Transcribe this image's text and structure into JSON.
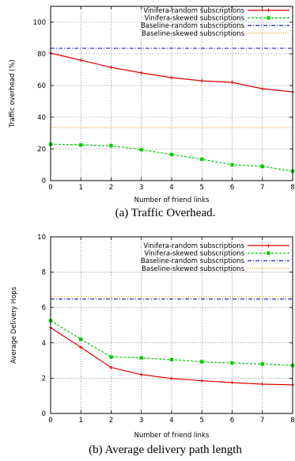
{
  "chart_data": [
    {
      "type": "line",
      "caption": "(a) Traffic Overhead.",
      "xlabel": "Number of friend links",
      "ylabel": "Traffic overhead (%)",
      "xlim": [
        0,
        8
      ],
      "ylim": [
        0,
        110
      ],
      "xticks": [
        0,
        1,
        2,
        3,
        4,
        5,
        6,
        7,
        8
      ],
      "yticks": [
        0,
        20,
        40,
        60,
        80,
        100
      ],
      "grid": true,
      "legend": "top-right",
      "series": [
        {
          "name": "Vinifera-random subscriptions",
          "style": "line-points",
          "color": "#dd0000",
          "x": [
            0,
            1,
            2,
            3,
            4,
            5,
            6,
            7,
            8
          ],
          "values": [
            80.5,
            76,
            71.5,
            68,
            65,
            63,
            62,
            58,
            56
          ]
        },
        {
          "name": "Vinifera-skewed subscriptions",
          "style": "dashed-squares",
          "color": "#00cc00",
          "x": [
            0,
            1,
            2,
            3,
            4,
            5,
            6,
            7,
            8
          ],
          "values": [
            23,
            22.5,
            22,
            19.5,
            16.5,
            13.5,
            10,
            9,
            6
          ]
        },
        {
          "name": "Baseline-random subscriptions",
          "style": "dash-dot",
          "color": "#0000cc",
          "x": [
            0,
            8
          ],
          "values": [
            83.5,
            83.5
          ]
        },
        {
          "name": "Baseline-skewed subscriptions",
          "style": "dotted",
          "color": "#e0a020",
          "x": [
            0,
            8
          ],
          "values": [
            33.5,
            33.5
          ]
        }
      ]
    },
    {
      "type": "line",
      "caption": "(b) Average delivery path length",
      "xlabel": "Number of friend links",
      "ylabel": "Average Delivery Hops",
      "xlim": [
        0,
        8
      ],
      "ylim": [
        0,
        10
      ],
      "xticks": [
        0,
        1,
        2,
        3,
        4,
        5,
        6,
        7,
        8
      ],
      "yticks": [
        0,
        2,
        4,
        6,
        8,
        10
      ],
      "grid": true,
      "legend": "top-right",
      "series": [
        {
          "name": "Vinifera-random subscriptions",
          "style": "line-points",
          "color": "#dd0000",
          "x": [
            0,
            1,
            2,
            3,
            4,
            5,
            6,
            7,
            8
          ],
          "values": [
            4.85,
            3.75,
            2.6,
            2.2,
            1.98,
            1.85,
            1.75,
            1.66,
            1.62
          ]
        },
        {
          "name": "Vinifera-skewed subscriptions",
          "style": "dashed-squares",
          "color": "#00cc00",
          "x": [
            0,
            1,
            2,
            3,
            4,
            5,
            6,
            7,
            8
          ],
          "values": [
            5.25,
            4.2,
            3.2,
            3.15,
            3.05,
            2.93,
            2.86,
            2.8,
            2.72
          ]
        },
        {
          "name": "Baseline-random subscriptions",
          "style": "dash-dot",
          "color": "#0000cc",
          "x": [
            0,
            8
          ],
          "values": [
            6.48,
            6.48
          ]
        },
        {
          "name": "Baseline-skewed subscriptions",
          "style": "dotted",
          "color": "#e0a020",
          "x": [
            0,
            8
          ],
          "values": [
            6.6,
            6.6
          ]
        }
      ]
    }
  ]
}
